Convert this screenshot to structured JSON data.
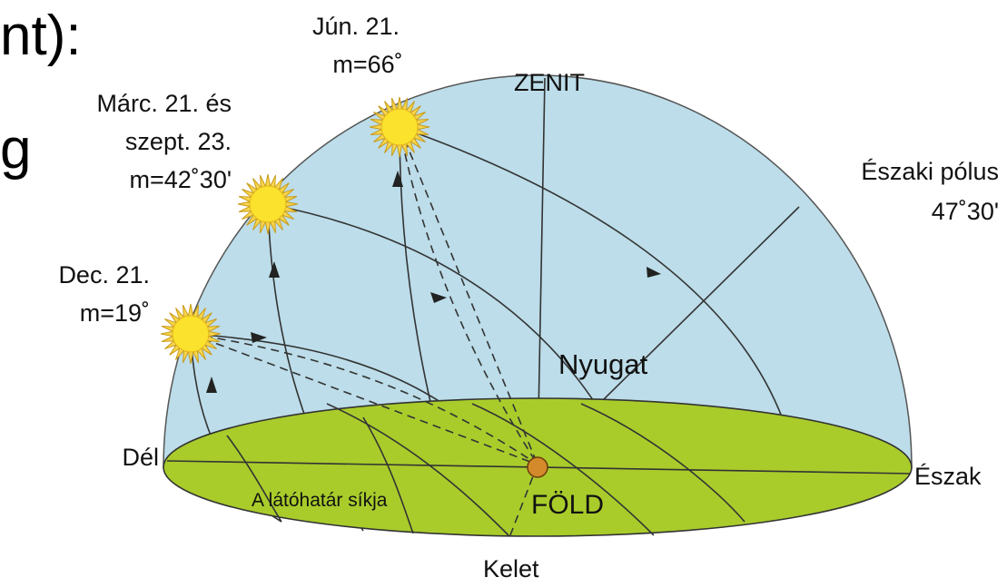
{
  "slide_fragments": [
    "nt):",
    "g"
  ],
  "labels": {
    "june": [
      "Jún. 21.",
      "m=66˚"
    ],
    "zenit": "ZENIT",
    "equinox": [
      "Márc. 21. és",
      "szept. 23.",
      "m=42˚30'"
    ],
    "north_pole": [
      "Északi pólus",
      "47˚30'"
    ],
    "december": [
      "Dec. 21.",
      "m=19˚"
    ],
    "west": "Nyugat",
    "south": "Dél",
    "north": "Észak",
    "horizon_plane": "A látóhatár síkja",
    "earth": "FÖLD",
    "east": "Kelet"
  }
}
